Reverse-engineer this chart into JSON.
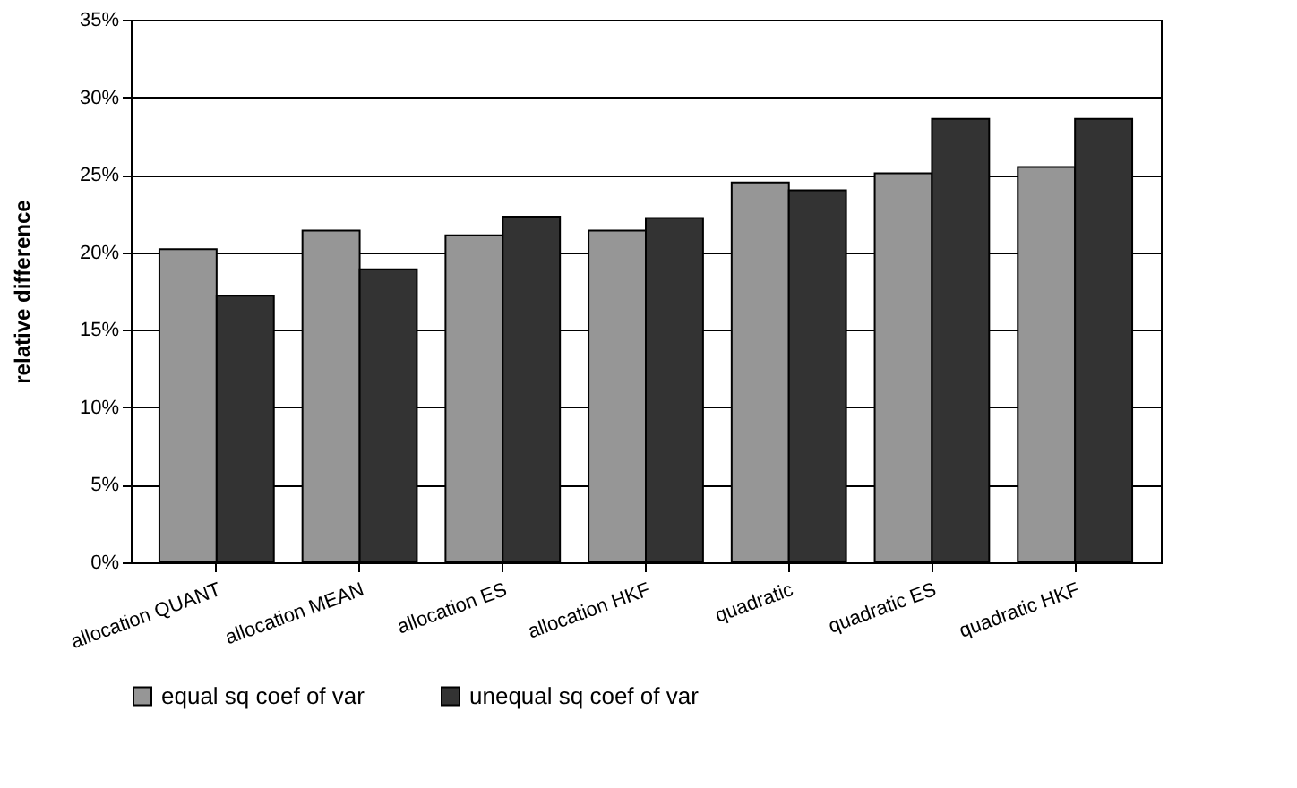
{
  "chart_data": {
    "type": "bar",
    "ylabel": "relative difference",
    "categories": [
      "allocation QUANT",
      "allocation MEAN",
      "allocation ES",
      "allocation HKF",
      "quadratic",
      "quadratic ES",
      "quadratic HKF"
    ],
    "series": [
      {
        "name": "equal sq coef of var",
        "color": "#969696",
        "values": [
          20.2,
          21.4,
          21.1,
          21.4,
          24.5,
          25.1,
          25.5
        ]
      },
      {
        "name": "unequal sq coef of var",
        "color": "#333333",
        "values": [
          17.2,
          18.9,
          22.3,
          22.2,
          24.0,
          28.6,
          28.6
        ]
      }
    ],
    "ylim": [
      0,
      35
    ],
    "yticks": [
      {
        "value": 0,
        "label": "0%"
      },
      {
        "value": 5,
        "label": "5%"
      },
      {
        "value": 10,
        "label": "10%"
      },
      {
        "value": 15,
        "label": "15%"
      },
      {
        "value": 20,
        "label": "20%"
      },
      {
        "value": 25,
        "label": "25%"
      },
      {
        "value": 30,
        "label": "30%"
      },
      {
        "value": 35,
        "label": "35%"
      }
    ],
    "grid": "y",
    "legend": "bottom"
  }
}
